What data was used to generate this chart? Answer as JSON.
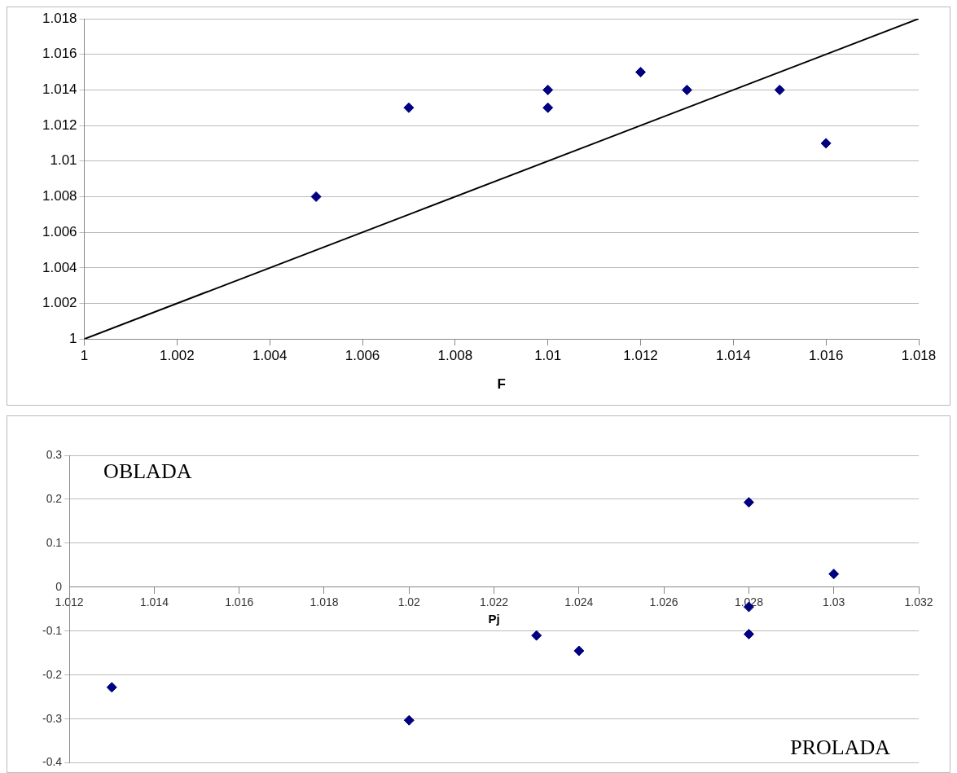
{
  "chart_data": [
    {
      "type": "scatter",
      "xlabel": "F",
      "xlim": [
        1,
        1.018
      ],
      "xticks": [
        1,
        1.002,
        1.004,
        1.006,
        1.008,
        1.01,
        1.012,
        1.014,
        1.016,
        1.018
      ],
      "ylim": [
        1,
        1.018
      ],
      "yticks": [
        1,
        1.002,
        1.004,
        1.006,
        1.008,
        1.01,
        1.012,
        1.014,
        1.016,
        1.018
      ],
      "grid": "y",
      "marker": "diamond",
      "series": [
        {
          "color": "#000080",
          "x": [
            1.005,
            1.007,
            1.01,
            1.01,
            1.012,
            1.013,
            1.015,
            1.016
          ],
          "values": [
            1.008,
            1.013,
            1.014,
            1.013,
            1.015,
            1.014,
            1.014,
            1.011
          ]
        },
        {
          "type": "line",
          "color": "#000000",
          "marker": "none",
          "line_style": "solid",
          "x": [
            1,
            1.018
          ],
          "values": [
            1,
            1.018
          ]
        }
      ]
    },
    {
      "type": "scatter",
      "xlabel": "Pj",
      "xlim": [
        1.012,
        1.032
      ],
      "xticks": [
        1.012,
        1.014,
        1.016,
        1.018,
        1.02,
        1.022,
        1.024,
        1.026,
        1.028,
        1.03,
        1.032
      ],
      "ylim": [
        -0.4,
        0.3
      ],
      "yticks": [
        -0.4,
        -0.3,
        -0.2,
        -0.1,
        0,
        0.1,
        0.2,
        0.3
      ],
      "grid": "y",
      "marker": "diamond",
      "annotations": [
        "OBLADA",
        "PROLADA"
      ],
      "series": [
        {
          "color": "#000080",
          "x": [
            1.013,
            1.02,
            1.023,
            1.024,
            1.028,
            1.028,
            1.028,
            1.03
          ],
          "values": [
            -0.228,
            -0.303,
            -0.11,
            -0.145,
            0.193,
            -0.045,
            -0.107,
            0.03
          ]
        }
      ]
    }
  ]
}
